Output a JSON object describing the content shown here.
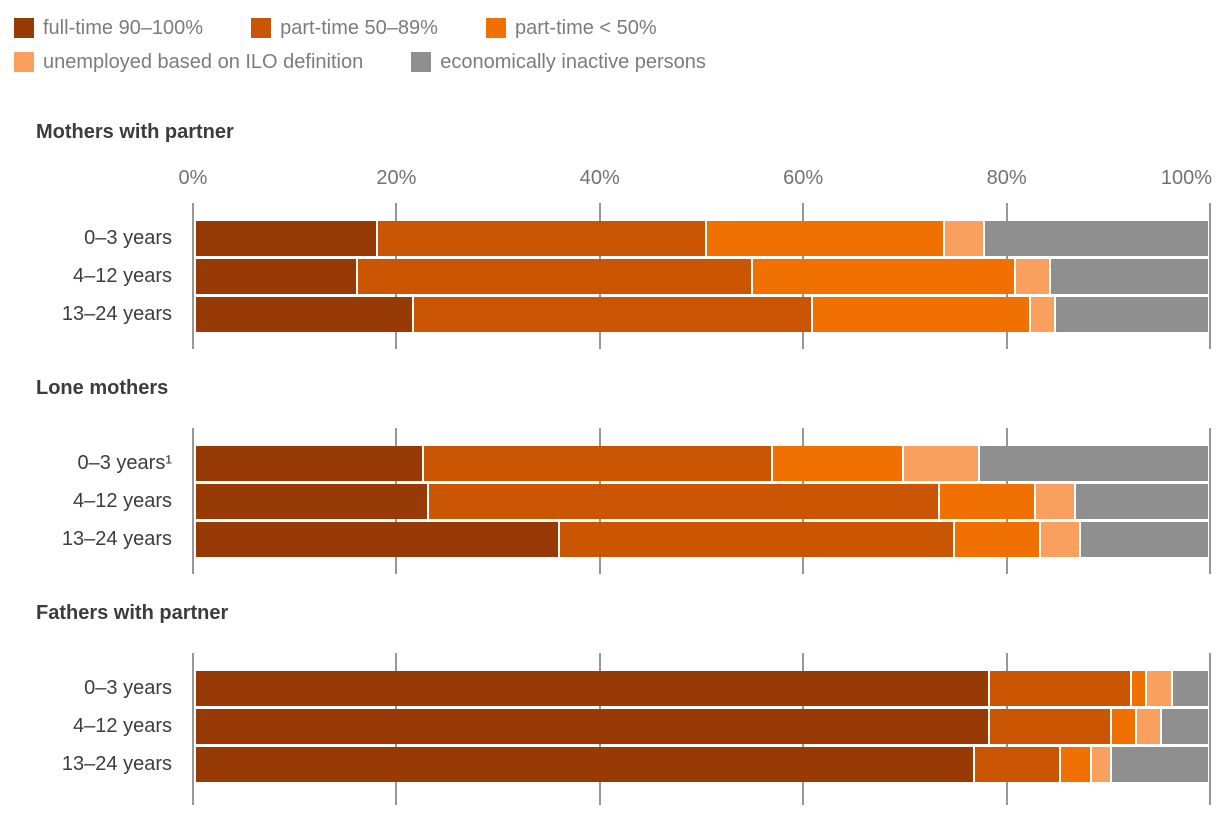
{
  "series": [
    {
      "name": "full-time 90–100%",
      "color": "#983A05"
    },
    {
      "name": "part-time 50–89%",
      "color": "#CA5502"
    },
    {
      "name": "part-time < 50%",
      "color": "#F07102"
    },
    {
      "name": "unemployed based on ILO definition",
      "color": "#F9A05F"
    },
    {
      "name": "economically inactive persons",
      "color": "#8F8F8F"
    }
  ],
  "legend": {
    "rows": [
      [
        0,
        1,
        2
      ],
      [
        3,
        4
      ]
    ]
  },
  "chart_data": {
    "type": "bar",
    "orientation": "horizontal",
    "stacked": true,
    "unit": "%",
    "x_ticks": [
      "0%",
      "20%",
      "40%",
      "60%",
      "80%",
      "100%"
    ],
    "x_range": [
      0,
      100
    ],
    "grid": true,
    "legend_position": "top",
    "series": [
      "full-time 90–100%",
      "part-time 50–89%",
      "part-time < 50%",
      "unemployed based on ILO definition",
      "economically inactive persons"
    ],
    "groups": [
      {
        "title": "Mothers with partner",
        "categories": [
          "0–3 years",
          "4–12 years",
          "13–24 years"
        ],
        "values": [
          [
            18,
            32.5,
            23.5,
            4,
            22
          ],
          [
            16,
            39,
            26,
            3.5,
            15.5
          ],
          [
            21.5,
            39.5,
            21.5,
            2.5,
            15
          ]
        ]
      },
      {
        "title": "Lone mothers",
        "categories": [
          "0–3 years¹",
          "4–12 years",
          "13–24 years"
        ],
        "values": [
          [
            22.5,
            34.5,
            13,
            7.5,
            22.5
          ],
          [
            23,
            50.5,
            9.5,
            4,
            13
          ],
          [
            36,
            39,
            8.5,
            4,
            12.5
          ]
        ]
      },
      {
        "title": "Fathers with partner",
        "categories": [
          "0–3 years",
          "4–12 years",
          "13–24 years"
        ],
        "values": [
          [
            78.5,
            14,
            1.5,
            2.5,
            3.5
          ],
          [
            78.5,
            12,
            2.5,
            2.5,
            4.5
          ],
          [
            77,
            8.5,
            3,
            2,
            9.5
          ]
        ]
      }
    ]
  },
  "colors": {
    "gridline": "#979797",
    "axis_label": "#737373",
    "legend_text": "#7C7C7C",
    "section_title": "#3C3C3C",
    "row_label": "#3D3D3D",
    "background": "#FFFFFF"
  }
}
